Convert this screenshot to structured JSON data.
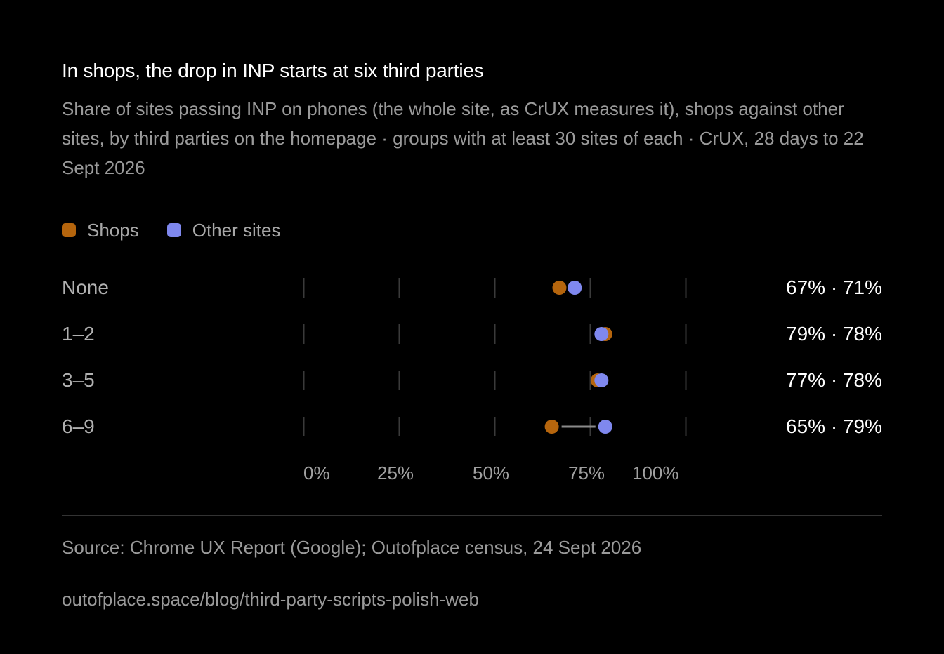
{
  "title": "In shops, the drop in INP starts at six third parties",
  "subtitle": "Share of sites passing INP on phones (the whole site, as CrUX measures it), shops against other sites, by third parties on the homepage · groups with at least 30 sites of each · CrUX, 28 days to 22 Sept 2026",
  "legend": [
    {
      "label": "Shops",
      "color": "#b5650d"
    },
    {
      "label": "Other sites",
      "color": "#7f88ee"
    }
  ],
  "chart_data": {
    "type": "dot",
    "title": "In shops, the drop in INP starts at six third parties",
    "categories": [
      "None",
      "1–2",
      "3–5",
      "6–9"
    ],
    "series": [
      {
        "name": "Shops",
        "color": "#b5650d",
        "values": [
          67,
          79,
          77,
          65
        ]
      },
      {
        "name": "Other sites",
        "color": "#7f88ee",
        "values": [
          71,
          78,
          78,
          79
        ]
      }
    ],
    "value_labels": [
      "67% · 71%",
      "79% · 78%",
      "77% · 78%",
      "65% · 79%"
    ],
    "xlim": [
      0,
      100
    ],
    "x_ticks": [
      0,
      25,
      50,
      75,
      100
    ],
    "x_tick_labels": [
      "0%",
      "25%",
      "50%",
      "75%",
      "100%"
    ],
    "grid": true
  },
  "source": "Source: Chrome UX Report (Google); Outofplace census, 24 Sept 2026",
  "url": "outofplace.space/blog/third-party-scripts-polish-web"
}
